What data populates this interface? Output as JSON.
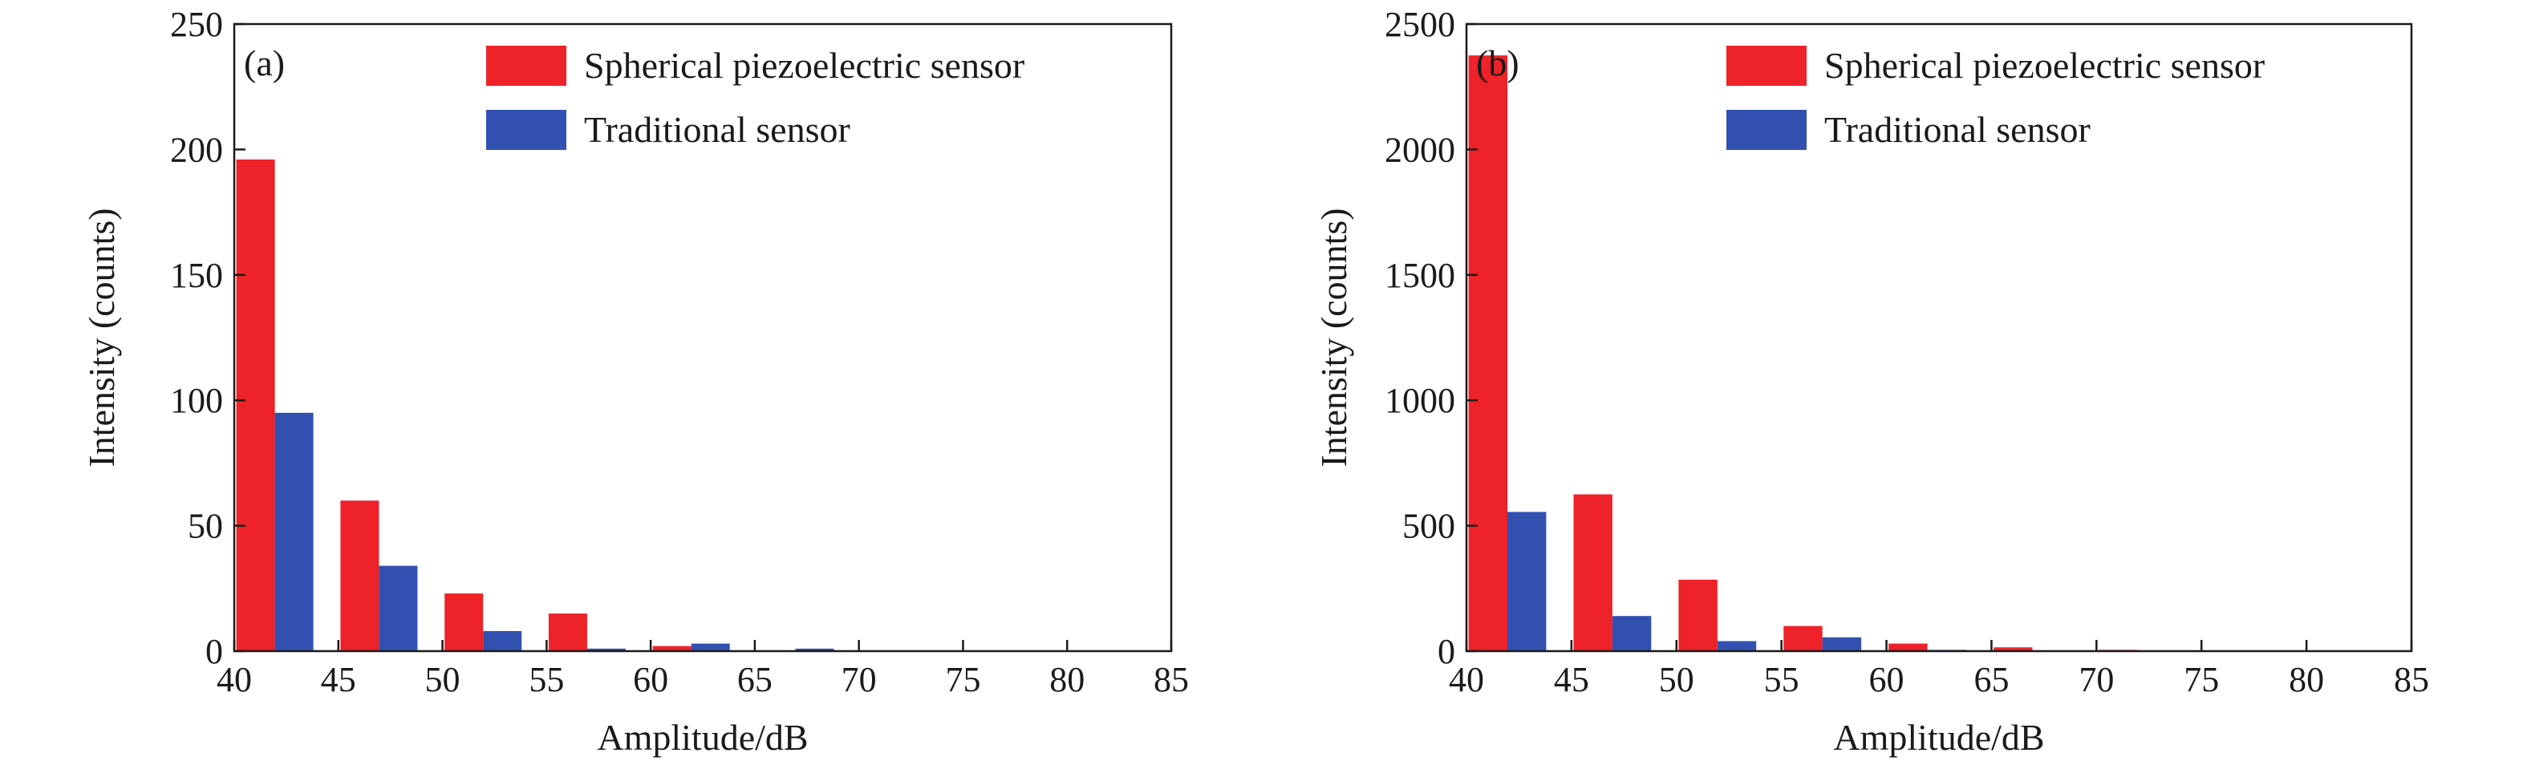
{
  "colors": {
    "spherical": "#EE2229",
    "traditional": "#3250B0",
    "axis": "#1a1a1a"
  },
  "chart_data": [
    {
      "id": "a",
      "type": "bar",
      "panel_label": "(a)",
      "xlabel": "Amplitude/dB",
      "ylabel": "Intensity (counts)",
      "xlim": [
        40,
        85
      ],
      "ylim": [
        0,
        250
      ],
      "xticks": [
        40,
        45,
        50,
        55,
        60,
        65,
        70,
        75,
        80,
        85
      ],
      "yticks": [
        0,
        50,
        100,
        150,
        200,
        250
      ],
      "bin_starts": [
        40,
        45,
        50,
        55,
        60,
        65,
        70,
        75,
        80
      ],
      "legend_position": "top-right",
      "series": [
        {
          "name": "Spherical piezoelectric sensor",
          "color_key": "spherical",
          "values": [
            196,
            60,
            23,
            15,
            2,
            0,
            0,
            0,
            0
          ]
        },
        {
          "name": "Traditional sensor",
          "color_key": "traditional",
          "values": [
            95,
            34,
            8,
            1,
            3,
            1,
            0,
            0,
            0
          ]
        }
      ]
    },
    {
      "id": "b",
      "type": "bar",
      "panel_label": "(b)",
      "xlabel": "Amplitude/dB",
      "ylabel": "Intensity (counts)",
      "xlim": [
        40,
        85
      ],
      "ylim": [
        0,
        2500
      ],
      "xticks": [
        40,
        45,
        50,
        55,
        60,
        65,
        70,
        75,
        80,
        85
      ],
      "yticks": [
        0,
        500,
        1000,
        1500,
        2000,
        2500
      ],
      "bin_starts": [
        40,
        45,
        50,
        55,
        60,
        65,
        70,
        75,
        80
      ],
      "legend_position": "top-right",
      "series": [
        {
          "name": "Spherical piezoelectric sensor",
          "color_key": "spherical",
          "values": [
            2375,
            625,
            285,
            100,
            30,
            15,
            5,
            3,
            2
          ]
        },
        {
          "name": "Traditional sensor",
          "color_key": "traditional",
          "values": [
            555,
            140,
            40,
            55,
            5,
            0,
            0,
            0,
            0
          ]
        }
      ]
    }
  ]
}
